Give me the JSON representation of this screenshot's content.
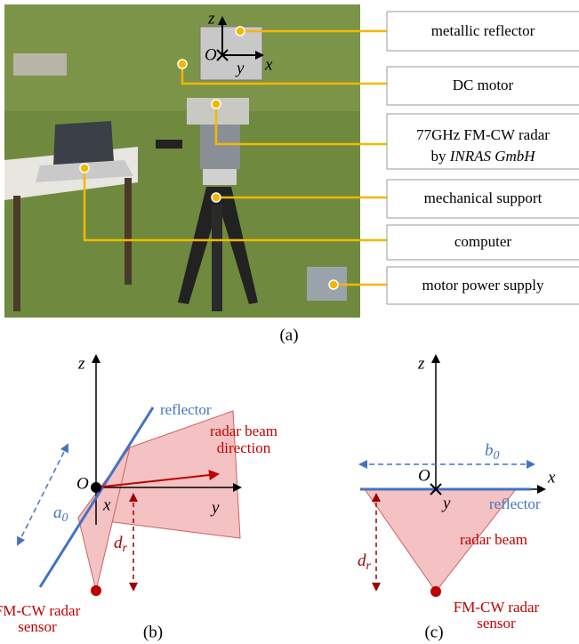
{
  "panel_a": {
    "photo_axes": {
      "z": "z",
      "origin": "O",
      "y": "y",
      "x": "x"
    },
    "labels": [
      {
        "lines": [
          "metallic reflector"
        ]
      },
      {
        "lines": [
          "DC motor"
        ]
      },
      {
        "lines": [
          "77GHz FM-CW radar"
        ],
        "line2_plain": "by ",
        "line2_italic": "INRAS GmbH"
      },
      {
        "lines": [
          "mechanical support"
        ]
      },
      {
        "lines": [
          "computer"
        ]
      },
      {
        "lines": [
          "motor power supply"
        ]
      }
    ],
    "caption": "(a)"
  },
  "panel_b": {
    "z": "z",
    "origin": "O",
    "x": "x",
    "y": "y",
    "a0": {
      "base": "a",
      "sub": "0"
    },
    "reflector": "reflector",
    "beam": [
      "radar beam",
      "direction"
    ],
    "dr": {
      "base": "d",
      "sub": "r"
    },
    "sensor": [
      "FM-CW radar",
      "sensor"
    ],
    "caption": "(b)"
  },
  "panel_c": {
    "z": "z",
    "origin": "O",
    "x": "x",
    "y": "y",
    "b0": {
      "base": "b",
      "sub": "0"
    },
    "reflector": "reflector",
    "beam": "radar beam",
    "dr": {
      "base": "d",
      "sub": "r"
    },
    "sensor": [
      "FM-CW radar",
      "sensor"
    ],
    "caption": "(c)"
  }
}
